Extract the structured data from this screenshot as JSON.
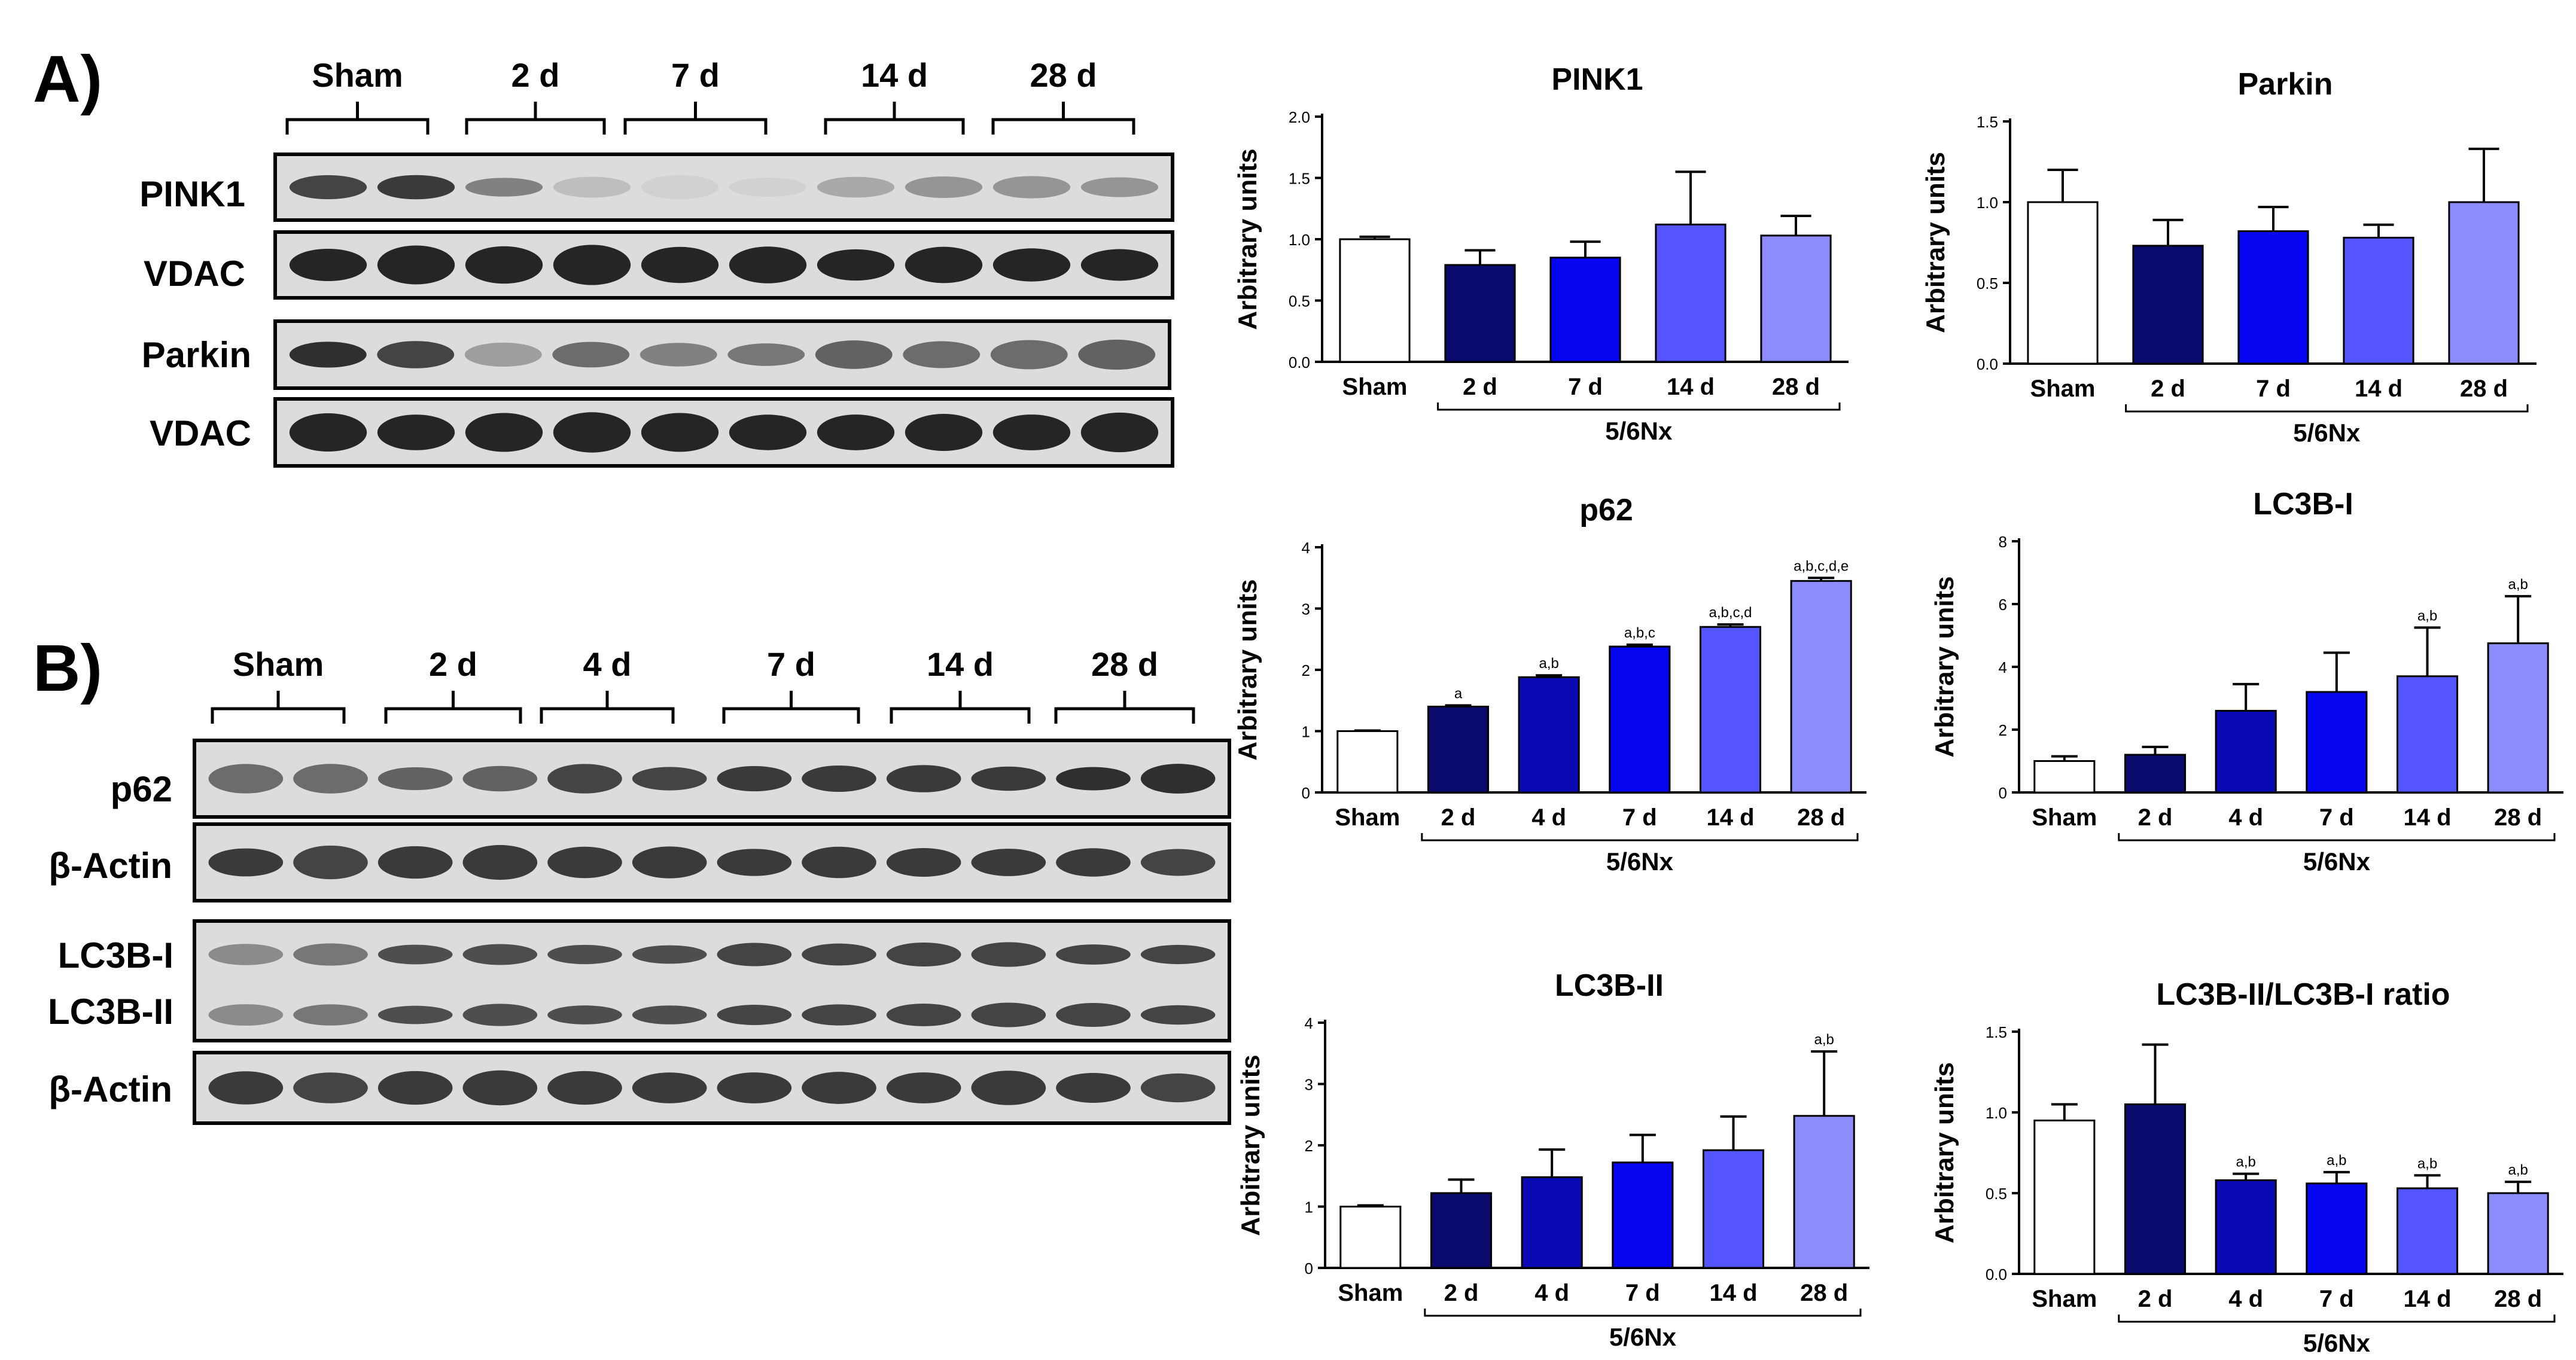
{
  "panels": {
    "A": {
      "label": "A)",
      "groups": [
        "Sham",
        "2 d",
        "7 d",
        "14 d",
        "28 d"
      ],
      "rows": [
        {
          "name": "PINK1",
          "band": "pink1"
        },
        {
          "name": "VDAC",
          "band": "vdac"
        },
        {
          "name": "Parkin",
          "band": "parkin"
        },
        {
          "name": "VDAC",
          "band": "vdac"
        }
      ]
    },
    "B": {
      "label": "B)",
      "groups": [
        "Sham",
        "2 d",
        "4 d",
        "7 d",
        "14 d",
        "28 d"
      ],
      "rows": [
        {
          "name": "p62",
          "band": "p62"
        },
        {
          "name": "β-Actin",
          "band": "actin"
        },
        {
          "name": "LC3B-I",
          "band": "lc3"
        },
        {
          "name": "LC3B-II",
          "band": "lc3"
        },
        {
          "name": "β-Actin",
          "band": "actin"
        }
      ]
    }
  },
  "colors": [
    "#ffffff",
    "#0a0a6e",
    "#0a0ab4",
    "#0505f0",
    "#5555ff",
    "#8c8cff"
  ],
  "group_label": "5/6Nx",
  "chart_data": [
    {
      "type": "bar",
      "title": "PINK1",
      "ylabel": "Arbitrary units",
      "categories": [
        "Sham",
        "2 d",
        "7 d",
        "14 d",
        "28 d"
      ],
      "values": [
        1.0,
        0.79,
        0.85,
        1.12,
        1.03
      ],
      "errors": [
        0.02,
        0.12,
        0.13,
        0.43,
        0.16
      ],
      "annotations": [
        "",
        "",
        "",
        "",
        ""
      ],
      "ylim": [
        0,
        2.0
      ],
      "yticks": [
        "0.0",
        "0.5",
        "1.0",
        "1.5",
        "2.0"
      ]
    },
    {
      "type": "bar",
      "title": "Parkin",
      "ylabel": "Arbitrary units",
      "categories": [
        "Sham",
        "2 d",
        "7 d",
        "14 d",
        "28 d"
      ],
      "values": [
        1.0,
        0.73,
        0.82,
        0.78,
        1.0
      ],
      "errors": [
        0.2,
        0.16,
        0.15,
        0.08,
        0.33
      ],
      "annotations": [
        "",
        "",
        "",
        "",
        ""
      ],
      "ylim": [
        0,
        1.5
      ],
      "yticks": [
        "0.0",
        "0.5",
        "1.0",
        "1.5"
      ]
    },
    {
      "type": "bar",
      "title": "p62",
      "ylabel": "Arbitrary units",
      "categories": [
        "Sham",
        "2 d",
        "4 d",
        "7 d",
        "14 d",
        "28 d"
      ],
      "values": [
        1.0,
        1.4,
        1.88,
        2.38,
        2.7,
        3.45
      ],
      "errors": [
        0.01,
        0.02,
        0.03,
        0.03,
        0.04,
        0.05
      ],
      "annotations": [
        "",
        "a",
        "a,b",
        "a,b,c",
        "a,b,c,d",
        "a,b,c,d,e"
      ],
      "ylim": [
        0,
        4
      ],
      "yticks": [
        "0",
        "1",
        "2",
        "3",
        "4"
      ]
    },
    {
      "type": "bar",
      "title": "LC3B-I",
      "ylabel": "Arbitrary units",
      "categories": [
        "Sham",
        "2 d",
        "4 d",
        "7 d",
        "14 d",
        "28 d"
      ],
      "values": [
        1.0,
        1.2,
        2.6,
        3.2,
        3.7,
        4.75
      ],
      "errors": [
        0.15,
        0.25,
        0.85,
        1.25,
        1.55,
        1.5
      ],
      "annotations": [
        "",
        "",
        "",
        "",
        "a,b",
        "a,b"
      ],
      "ylim": [
        0,
        8
      ],
      "yticks": [
        "0",
        "2",
        "4",
        "6",
        "8"
      ]
    },
    {
      "type": "bar",
      "title": "LC3B-II",
      "ylabel": "Arbitrary units",
      "categories": [
        "Sham",
        "2 d",
        "4 d",
        "7 d",
        "14 d",
        "28 d"
      ],
      "values": [
        1.0,
        1.22,
        1.48,
        1.72,
        1.92,
        2.48
      ],
      "errors": [
        0.02,
        0.22,
        0.45,
        0.45,
        0.55,
        1.05
      ],
      "annotations": [
        "",
        "",
        "",
        "",
        "",
        "a,b"
      ],
      "ylim": [
        0,
        4
      ],
      "yticks": [
        "0",
        "1",
        "2",
        "3",
        "4"
      ]
    },
    {
      "type": "bar",
      "title": "LC3B-II/LC3B-I ratio",
      "ylabel": "Arbitrary units",
      "categories": [
        "Sham",
        "2 d",
        "4 d",
        "7 d",
        "14 d",
        "28 d"
      ],
      "values": [
        0.95,
        1.05,
        0.58,
        0.56,
        0.53,
        0.5
      ],
      "errors": [
        0.1,
        0.37,
        0.04,
        0.07,
        0.08,
        0.07
      ],
      "annotations": [
        "",
        "",
        "a,b",
        "a,b",
        "a,b",
        "a,b"
      ],
      "ylim": [
        0,
        1.5
      ],
      "yticks": [
        "0.0",
        "0.5",
        "1.0",
        "1.5"
      ]
    }
  ]
}
